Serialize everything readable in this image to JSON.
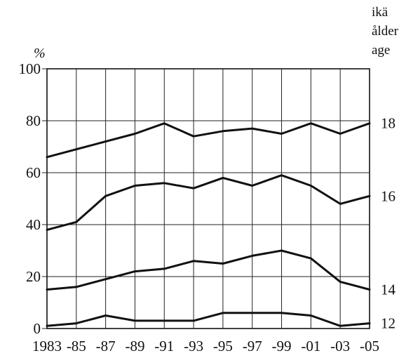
{
  "chart_data": {
    "type": "line",
    "y_unit": "%",
    "right_axis_title": [
      "ikä",
      "ålder",
      "age"
    ],
    "categories": [
      "1983",
      "-85",
      "-87",
      "-89",
      "-91",
      "-93",
      "-95",
      "-97",
      "-99",
      "-01",
      "-03",
      "-05"
    ],
    "y_ticks": [
      "0",
      "20",
      "40",
      "60",
      "80",
      "100"
    ],
    "ylim": [
      0,
      100
    ],
    "grid": true,
    "series": [
      {
        "name": "18",
        "values": [
          66,
          69,
          72,
          75,
          79,
          74,
          76,
          77,
          75,
          79,
          75,
          79
        ]
      },
      {
        "name": "16",
        "values": [
          38,
          41,
          51,
          55,
          56,
          54,
          58,
          55,
          59,
          55,
          48,
          51
        ]
      },
      {
        "name": "14",
        "values": [
          15,
          16,
          19,
          22,
          23,
          26,
          25,
          28,
          30,
          27,
          18,
          15
        ]
      },
      {
        "name": "12",
        "values": [
          1,
          2,
          5,
          3,
          3,
          3,
          6,
          6,
          6,
          5,
          1,
          2
        ]
      }
    ]
  }
}
